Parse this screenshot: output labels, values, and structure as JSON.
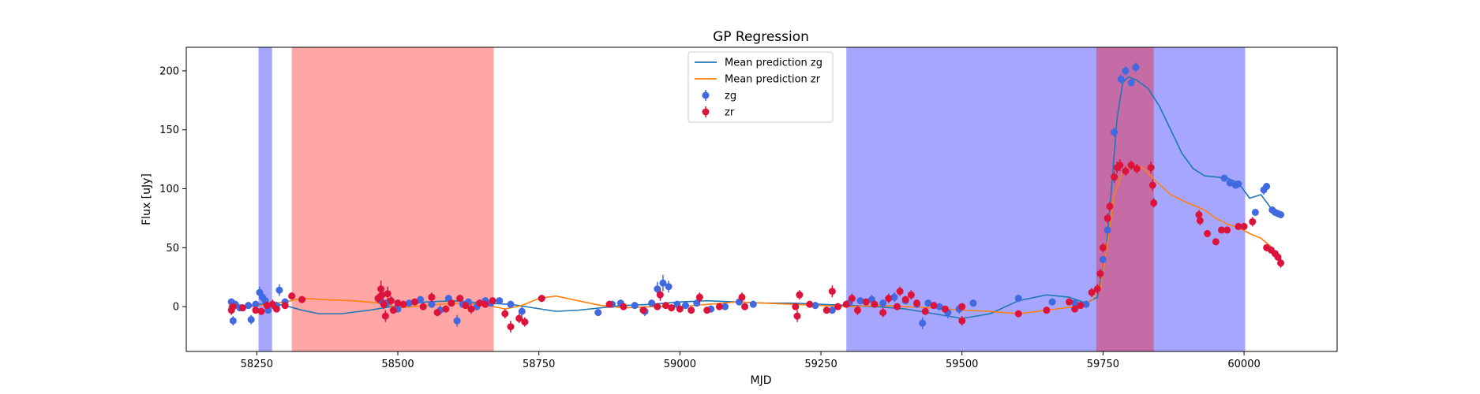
{
  "chart_data": {
    "type": "scatter",
    "title": "GP Regression",
    "xlabel": "MJD",
    "ylabel": "Flux [uJy]",
    "xlim": [
      58125,
      60165
    ],
    "ylim": [
      -38,
      220
    ],
    "xticks": [
      58250,
      58500,
      58750,
      59000,
      59250,
      59500,
      59750,
      60000
    ],
    "yticks": [
      0,
      50,
      100,
      150,
      200
    ],
    "grid": false,
    "legend": {
      "placement": "top-center"
    },
    "colors": {
      "zg_points": "#4169e1",
      "zr_points": "#dc143c",
      "zg_line": "#1f77b4",
      "zr_line": "#ff7f0e",
      "band_blue": "#0000ff",
      "band_red": "#ff0000"
    },
    "shaded_regions": [
      {
        "x": [
          58253,
          58277
        ],
        "color": "#0000ff",
        "alpha": 0.35
      },
      {
        "x": [
          58312,
          58670
        ],
        "color": "#ff0000",
        "alpha": 0.35
      },
      {
        "x": [
          59295,
          59738
        ],
        "color": "#0000ff",
        "alpha": 0.35
      },
      {
        "x": [
          59738,
          59840
        ],
        "color": "#0000ff",
        "alpha": 0.35
      },
      {
        "x": [
          59738,
          59840
        ],
        "color": "#ff0000",
        "alpha": 0.35
      },
      {
        "x": [
          59840,
          60002
        ],
        "color": "#0000ff",
        "alpha": 0.35
      }
    ],
    "series": [
      {
        "name": "Mean prediction zg",
        "kind": "line",
        "color": "#1f77b4",
        "x": [
          58200,
          58240,
          58270,
          58300,
          58330,
          58360,
          58400,
          58450,
          58500,
          58550,
          58600,
          58650,
          58700,
          58740,
          58780,
          58820,
          58860,
          58900,
          58950,
          59000,
          59050,
          59100,
          59150,
          59200,
          59250,
          59300,
          59350,
          59400,
          59450,
          59500,
          59550,
          59600,
          59650,
          59690,
          59720,
          59740,
          59755,
          59765,
          59775,
          59785,
          59795,
          59810,
          59830,
          59850,
          59870,
          59890,
          59910,
          59930,
          59950,
          59970,
          59990,
          60010,
          60030,
          60050,
          60065
        ],
        "y": [
          0,
          1,
          3,
          1,
          -3,
          -6,
          -6,
          -3,
          1,
          4,
          5,
          3,
          2,
          -1,
          -4,
          -3,
          -1,
          1,
          2,
          4,
          5,
          4,
          3,
          3,
          2,
          1,
          0,
          -2,
          -6,
          -10,
          -6,
          5,
          10,
          8,
          3,
          8,
          45,
          100,
          160,
          190,
          195,
          192,
          185,
          170,
          150,
          130,
          117,
          111,
          110,
          109,
          105,
          92,
          95,
          82,
          78
        ]
      },
      {
        "name": "Mean prediction zr",
        "kind": "line",
        "color": "#ff7f0e",
        "x": [
          58200,
          58240,
          58270,
          58300,
          58330,
          58370,
          58420,
          58470,
          58500,
          58550,
          58600,
          58650,
          58690,
          58720,
          58750,
          58780,
          58820,
          58860,
          58900,
          58950,
          59000,
          59050,
          59100,
          59150,
          59200,
          59250,
          59300,
          59350,
          59400,
          59450,
          59500,
          59550,
          59600,
          59650,
          59700,
          59730,
          59745,
          59760,
          59770,
          59785,
          59800,
          59820,
          59840,
          59870,
          59900,
          59930,
          59950,
          59970,
          59990,
          60010,
          60030,
          60050,
          60065
        ],
        "y": [
          1,
          0,
          2,
          4,
          7,
          6,
          5,
          3,
          -1,
          1,
          3,
          2,
          -2,
          1,
          7,
          9,
          5,
          1,
          -1,
          0,
          0,
          2,
          4,
          3,
          2,
          1,
          0,
          1,
          0,
          -1,
          -3,
          -4,
          -6,
          -3,
          0,
          5,
          15,
          60,
          95,
          115,
          120,
          118,
          108,
          95,
          88,
          82,
          75,
          70,
          67,
          62,
          58,
          50,
          40
        ]
      },
      {
        "name": "zg",
        "kind": "points",
        "color": "#4169e1",
        "points": [
          [
            58205,
            4,
            3
          ],
          [
            58208,
            -12,
            4
          ],
          [
            58212,
            2,
            3
          ],
          [
            58220,
            -1,
            3
          ],
          [
            58235,
            1,
            3
          ],
          [
            58240,
            -11,
            4
          ],
          [
            58248,
            2,
            3
          ],
          [
            58255,
            12,
            5
          ],
          [
            58260,
            8,
            4
          ],
          [
            58265,
            5,
            3
          ],
          [
            58270,
            -3,
            3
          ],
          [
            58285,
            1,
            3
          ],
          [
            58290,
            14,
            5
          ],
          [
            58300,
            4,
            3
          ],
          [
            58470,
            5,
            3
          ],
          [
            58480,
            3,
            3
          ],
          [
            58500,
            -2,
            3
          ],
          [
            58520,
            3,
            3
          ],
          [
            58540,
            6,
            3
          ],
          [
            58560,
            2,
            3
          ],
          [
            58575,
            -3,
            4
          ],
          [
            58590,
            7,
            3
          ],
          [
            58605,
            -12,
            5
          ],
          [
            58615,
            2,
            3
          ],
          [
            58625,
            4,
            3
          ],
          [
            58640,
            0,
            3
          ],
          [
            58655,
            5,
            3
          ],
          [
            58665,
            3,
            3
          ],
          [
            58680,
            5,
            3
          ],
          [
            58700,
            2,
            3
          ],
          [
            58720,
            -4,
            4
          ],
          [
            58855,
            -5,
            3
          ],
          [
            58880,
            2,
            3
          ],
          [
            58895,
            3,
            3
          ],
          [
            58920,
            1,
            3
          ],
          [
            58938,
            -4,
            4
          ],
          [
            58950,
            3,
            3
          ],
          [
            58960,
            15,
            6
          ],
          [
            58970,
            20,
            7
          ],
          [
            58980,
            17,
            5
          ],
          [
            58995,
            2,
            3
          ],
          [
            59010,
            1,
            3
          ],
          [
            59030,
            3,
            3
          ],
          [
            59055,
            -2,
            3
          ],
          [
            59080,
            0,
            3
          ],
          [
            59105,
            4,
            3
          ],
          [
            59130,
            2,
            3
          ],
          [
            59240,
            1,
            3
          ],
          [
            59270,
            -3,
            3
          ],
          [
            59300,
            3,
            3
          ],
          [
            59320,
            5,
            3
          ],
          [
            59340,
            6,
            4
          ],
          [
            59360,
            3,
            3
          ],
          [
            59380,
            8,
            4
          ],
          [
            59400,
            5,
            3
          ],
          [
            59420,
            2,
            3
          ],
          [
            59430,
            -14,
            5
          ],
          [
            59440,
            3,
            3
          ],
          [
            59460,
            0,
            3
          ],
          [
            59475,
            -5,
            5
          ],
          [
            59495,
            -2,
            4
          ],
          [
            59520,
            3,
            3
          ],
          [
            59600,
            7,
            3
          ],
          [
            59660,
            4,
            3
          ],
          [
            59700,
            3,
            3
          ],
          [
            59720,
            2,
            3
          ],
          [
            59750,
            40,
            3
          ],
          [
            59758,
            65,
            3
          ],
          [
            59770,
            148,
            4
          ],
          [
            59782,
            193,
            4
          ],
          [
            59790,
            200,
            4
          ],
          [
            59800,
            190,
            3
          ],
          [
            59808,
            203,
            4
          ],
          [
            59965,
            109,
            3
          ],
          [
            59975,
            105,
            3
          ],
          [
            59985,
            103,
            3
          ],
          [
            59990,
            104,
            3
          ],
          [
            60020,
            80,
            3
          ],
          [
            60035,
            99,
            4
          ],
          [
            60040,
            102,
            3
          ],
          [
            60050,
            82,
            3
          ],
          [
            60055,
            80,
            3
          ],
          [
            60060,
            79,
            3
          ],
          [
            60065,
            78,
            3
          ]
        ]
      },
      {
        "name": "zr",
        "kind": "points",
        "color": "#dc143c",
        "points": [
          [
            58205,
            -3,
            4
          ],
          [
            58208,
            0,
            3
          ],
          [
            58225,
            -1,
            3
          ],
          [
            58248,
            -3,
            3
          ],
          [
            58258,
            -4,
            3
          ],
          [
            58268,
            1,
            3
          ],
          [
            58278,
            2,
            4
          ],
          [
            58285,
            -2,
            3
          ],
          [
            58300,
            1,
            3
          ],
          [
            58312,
            9,
            3
          ],
          [
            58330,
            6,
            3
          ],
          [
            58465,
            7,
            4
          ],
          [
            58470,
            15,
            7
          ],
          [
            58472,
            10,
            5
          ],
          [
            58475,
            2,
            4
          ],
          [
            58478,
            -8,
            5
          ],
          [
            58482,
            11,
            6
          ],
          [
            58488,
            5,
            4
          ],
          [
            58492,
            -3,
            3
          ],
          [
            58500,
            3,
            3
          ],
          [
            58510,
            2,
            3
          ],
          [
            58530,
            4,
            3
          ],
          [
            58545,
            0,
            3
          ],
          [
            58560,
            8,
            4
          ],
          [
            58570,
            -5,
            3
          ],
          [
            58585,
            -2,
            3
          ],
          [
            58595,
            3,
            3
          ],
          [
            58610,
            7,
            3
          ],
          [
            58620,
            1,
            3
          ],
          [
            58630,
            -2,
            4
          ],
          [
            58645,
            3,
            3
          ],
          [
            58655,
            2,
            3
          ],
          [
            58668,
            5,
            3
          ],
          [
            58690,
            -6,
            4
          ],
          [
            58700,
            -17,
            5
          ],
          [
            58715,
            -10,
            4
          ],
          [
            58725,
            -13,
            4
          ],
          [
            58755,
            7,
            3
          ],
          [
            58875,
            2,
            3
          ],
          [
            58900,
            0,
            3
          ],
          [
            58935,
            -3,
            3
          ],
          [
            58960,
            0,
            3
          ],
          [
            58965,
            10,
            5
          ],
          [
            58975,
            1,
            3
          ],
          [
            58985,
            -1,
            3
          ],
          [
            59000,
            -2,
            3
          ],
          [
            59020,
            -3,
            3
          ],
          [
            59035,
            8,
            4
          ],
          [
            59048,
            -3,
            3
          ],
          [
            59070,
            0,
            3
          ],
          [
            59110,
            8,
            4
          ],
          [
            59115,
            0,
            3
          ],
          [
            59205,
            0,
            3
          ],
          [
            59208,
            -8,
            5
          ],
          [
            59212,
            10,
            4
          ],
          [
            59230,
            2,
            3
          ],
          [
            59260,
            -3,
            3
          ],
          [
            59270,
            13,
            5
          ],
          [
            59280,
            0,
            3
          ],
          [
            59295,
            2,
            3
          ],
          [
            59305,
            7,
            4
          ],
          [
            59315,
            -3,
            4
          ],
          [
            59330,
            4,
            3
          ],
          [
            59345,
            2,
            3
          ],
          [
            59360,
            -5,
            4
          ],
          [
            59370,
            7,
            4
          ],
          [
            59385,
            0,
            3
          ],
          [
            59390,
            13,
            4
          ],
          [
            59400,
            6,
            3
          ],
          [
            59410,
            10,
            4
          ],
          [
            59420,
            3,
            3
          ],
          [
            59435,
            -4,
            3
          ],
          [
            59450,
            1,
            3
          ],
          [
            59470,
            -2,
            3
          ],
          [
            59500,
            -12,
            4
          ],
          [
            59500,
            0,
            3
          ],
          [
            59600,
            -6,
            3
          ],
          [
            59650,
            -3,
            3
          ],
          [
            59690,
            4,
            3
          ],
          [
            59700,
            -2,
            3
          ],
          [
            59710,
            1,
            3
          ],
          [
            59730,
            12,
            4
          ],
          [
            59740,
            15,
            4
          ],
          [
            59745,
            28,
            4
          ],
          [
            59750,
            50,
            4
          ],
          [
            59758,
            75,
            4
          ],
          [
            59762,
            85,
            4
          ],
          [
            59770,
            110,
            5
          ],
          [
            59775,
            118,
            5
          ],
          [
            59780,
            120,
            5
          ],
          [
            59790,
            115,
            4
          ],
          [
            59800,
            120,
            4
          ],
          [
            59810,
            117,
            4
          ],
          [
            59835,
            118,
            5
          ],
          [
            59838,
            103,
            5
          ],
          [
            59840,
            88,
            4
          ],
          [
            59920,
            78,
            4
          ],
          [
            59922,
            73,
            4
          ],
          [
            59935,
            62,
            3
          ],
          [
            59950,
            55,
            3
          ],
          [
            59960,
            65,
            3
          ],
          [
            59970,
            65,
            3
          ],
          [
            59990,
            68,
            3
          ],
          [
            60000,
            68,
            3
          ],
          [
            60015,
            72,
            4
          ],
          [
            60040,
            50,
            3
          ],
          [
            60048,
            48,
            3
          ],
          [
            60055,
            45,
            3
          ],
          [
            60060,
            42,
            3
          ],
          [
            60065,
            37,
            4
          ]
        ]
      }
    ]
  }
}
